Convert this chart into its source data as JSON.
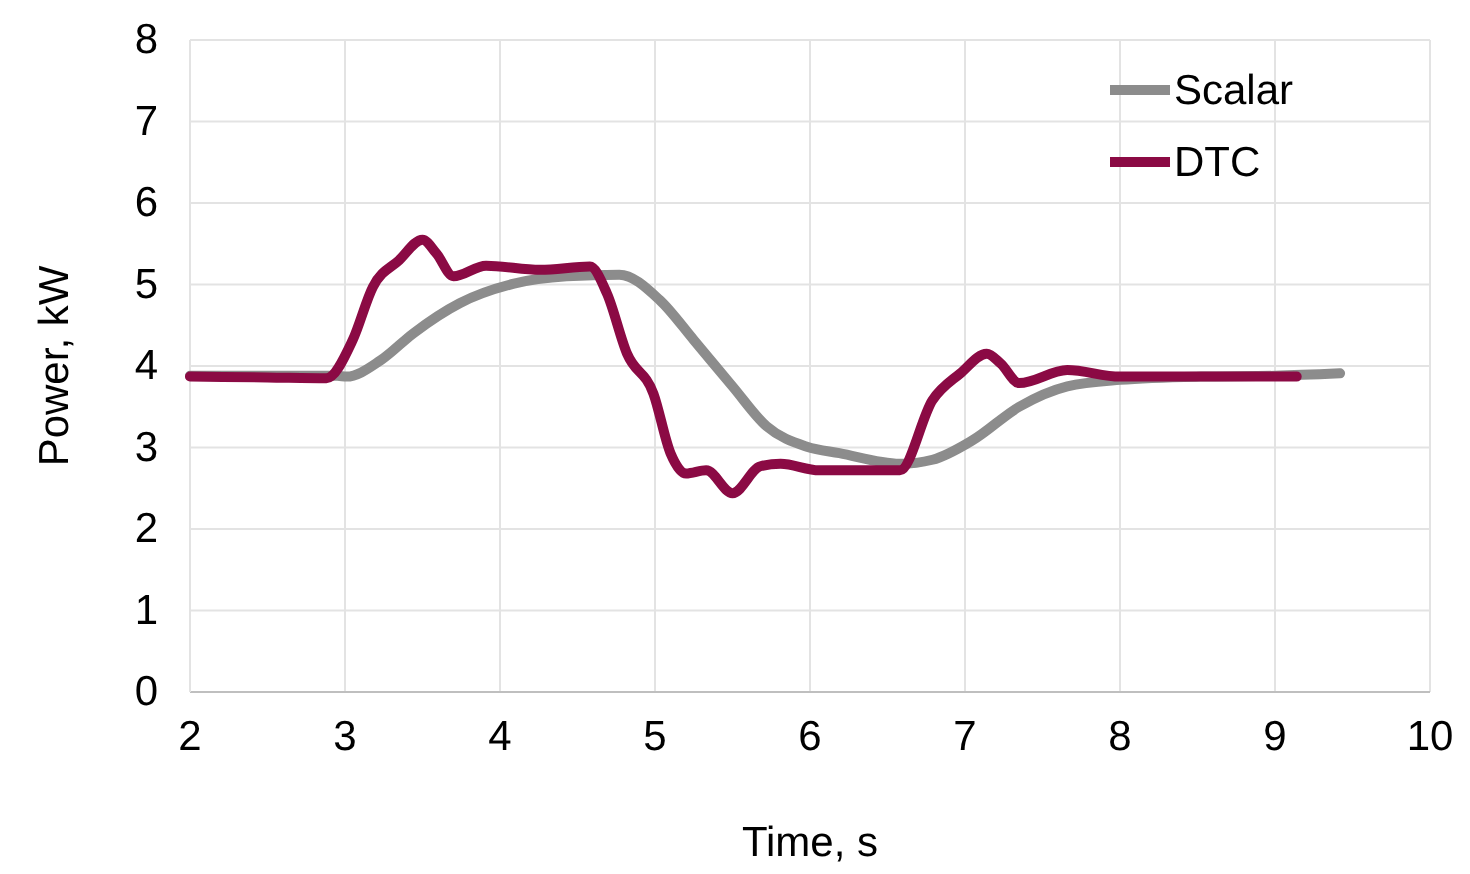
{
  "chart_data": {
    "type": "line",
    "xlabel": "Time, s",
    "ylabel": "Power, kW",
    "xlim": [
      2,
      10
    ],
    "ylim": [
      0,
      8
    ],
    "xticks": [
      2,
      3,
      4,
      5,
      6,
      7,
      8,
      9,
      10
    ],
    "yticks": [
      0,
      1,
      2,
      3,
      4,
      5,
      6,
      7,
      8
    ],
    "grid": true,
    "legend": "top right",
    "marker": "none",
    "line_style": "solid",
    "series": [
      {
        "name": "Scalar",
        "color": "#8c8c8c",
        "x": [
          2,
          2.5,
          2.95,
          3.01,
          3.23,
          3.44,
          3.74,
          4.09,
          4.43,
          4.77,
          5.03,
          5.25,
          5.5,
          5.72,
          5.98,
          6.19,
          6.58,
          6.79,
          7.05,
          7.35,
          7.66,
          8.0,
          8.52,
          9.0,
          9.42
        ],
        "values": [
          3.88,
          3.88,
          3.88,
          3.87,
          4.07,
          4.4,
          4.77,
          5.01,
          5.1,
          5.12,
          4.81,
          4.32,
          3.75,
          3.26,
          3.01,
          2.93,
          2.8,
          2.85,
          3.09,
          3.5,
          3.75,
          3.83,
          3.87,
          3.88,
          3.91
        ]
      },
      {
        "name": "DTC",
        "color": "#8b0a44",
        "x": [
          2,
          2.5,
          2.88,
          3.05,
          3.18,
          3.35,
          3.5,
          3.59,
          3.7,
          3.91,
          4.26,
          4.58,
          4.69,
          4.82,
          4.99,
          5.1,
          5.2,
          5.33,
          5.5,
          5.68,
          5.81,
          6.06,
          6.58,
          6.79,
          6.97,
          7.14,
          7.23,
          7.35,
          7.66,
          8.0,
          8.5,
          9.14
        ],
        "values": [
          3.87,
          3.86,
          3.85,
          4.32,
          4.97,
          5.3,
          5.55,
          5.38,
          5.1,
          5.23,
          5.18,
          5.22,
          4.89,
          4.15,
          3.66,
          2.93,
          2.68,
          2.72,
          2.44,
          2.77,
          2.8,
          2.72,
          2.72,
          3.58,
          3.91,
          4.15,
          4.03,
          3.79,
          3.95,
          3.87,
          3.87,
          3.87
        ]
      }
    ]
  }
}
